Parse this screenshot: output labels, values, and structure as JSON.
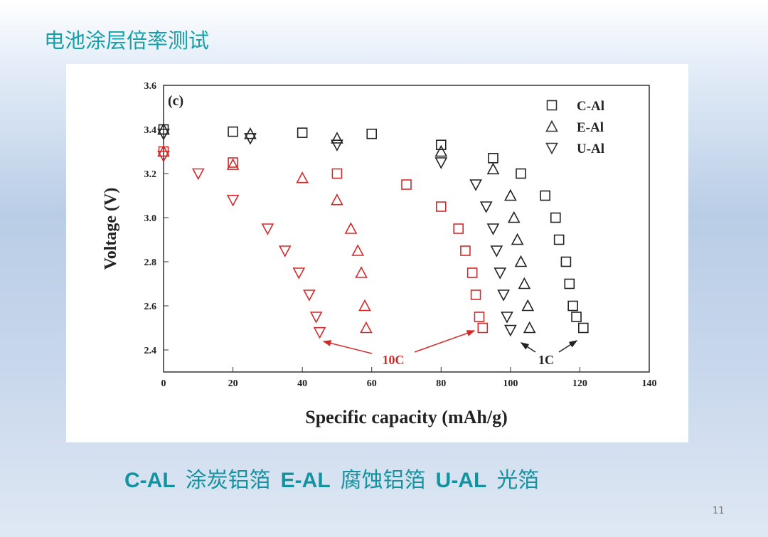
{
  "slide": {
    "title": "电池涂层倍率测试",
    "caption": [
      "C-AL",
      "涂炭铝箔",
      "E-AL",
      "腐蚀铝箔",
      "U-AL",
      "光箔"
    ],
    "page_number": "11"
  },
  "chart_data": {
    "type": "scatter",
    "panel_label": "(c)",
    "x_label": "Specific capacity (mAh/g)",
    "y_label": "Voltage (V)",
    "xlim": [
      0,
      140
    ],
    "xticks": [
      0,
      20,
      40,
      60,
      80,
      100,
      120,
      140
    ],
    "ylim": [
      2.3,
      3.6
    ],
    "yticks": [
      2.4,
      2.6,
      2.8,
      {
        "value": 3,
        "label": "3.0"
      },
      3.2,
      3.4,
      3.6
    ],
    "legend": [
      {
        "label": "C-Al",
        "marker": "square"
      },
      {
        "label": "E-Al",
        "marker": "triangle-up"
      },
      {
        "label": "U-Al",
        "marker": "triangle-down"
      }
    ],
    "annotations": [
      "10C",
      "1C"
    ],
    "series": [
      {
        "marker": "square",
        "color": "#222222",
        "x": [
          0,
          20,
          40,
          60,
          80,
          95,
          103,
          110,
          113,
          114,
          116,
          117,
          118,
          119,
          121
        ],
        "values": [
          3.4,
          3.39,
          3.385,
          3.38,
          3.33,
          3.27,
          3.2,
          3.1,
          3.0,
          2.9,
          2.8,
          2.7,
          2.6,
          2.55,
          2.5
        ]
      },
      {
        "marker": "triangle-up",
        "color": "#222222",
        "x": [
          0,
          25,
          50,
          80,
          95,
          100,
          101,
          102,
          103,
          104,
          105,
          105.5
        ],
        "values": [
          3.4,
          3.38,
          3.36,
          3.3,
          3.22,
          3.1,
          3.0,
          2.9,
          2.8,
          2.7,
          2.6,
          2.5
        ]
      },
      {
        "marker": "triangle-down",
        "color": "#222222",
        "x": [
          0,
          25,
          50,
          80,
          90,
          93,
          95,
          96,
          97,
          98,
          99,
          100
        ],
        "values": [
          3.38,
          3.36,
          3.33,
          3.25,
          3.15,
          3.05,
          2.95,
          2.85,
          2.75,
          2.65,
          2.55,
          2.49
        ]
      },
      {
        "marker": "square",
        "color": "#d42a2a",
        "x": [
          0,
          20,
          50,
          70,
          80,
          85,
          87,
          89,
          90,
          91,
          92
        ],
        "values": [
          3.3,
          3.25,
          3.2,
          3.15,
          3.05,
          2.95,
          2.85,
          2.75,
          2.65,
          2.55,
          2.5
        ]
      },
      {
        "marker": "triangle-up",
        "color": "#d42a2a",
        "x": [
          0,
          20,
          40,
          50,
          54,
          56,
          57,
          58,
          58.4
        ],
        "values": [
          3.3,
          3.24,
          3.18,
          3.08,
          2.95,
          2.85,
          2.75,
          2.6,
          2.5
        ]
      },
      {
        "marker": "triangle-down",
        "color": "#d42a2a",
        "x": [
          0,
          10,
          20,
          30,
          35,
          39,
          42,
          44,
          45
        ],
        "values": [
          3.28,
          3.2,
          3.08,
          2.95,
          2.85,
          2.75,
          2.65,
          2.55,
          2.48
        ]
      }
    ]
  }
}
